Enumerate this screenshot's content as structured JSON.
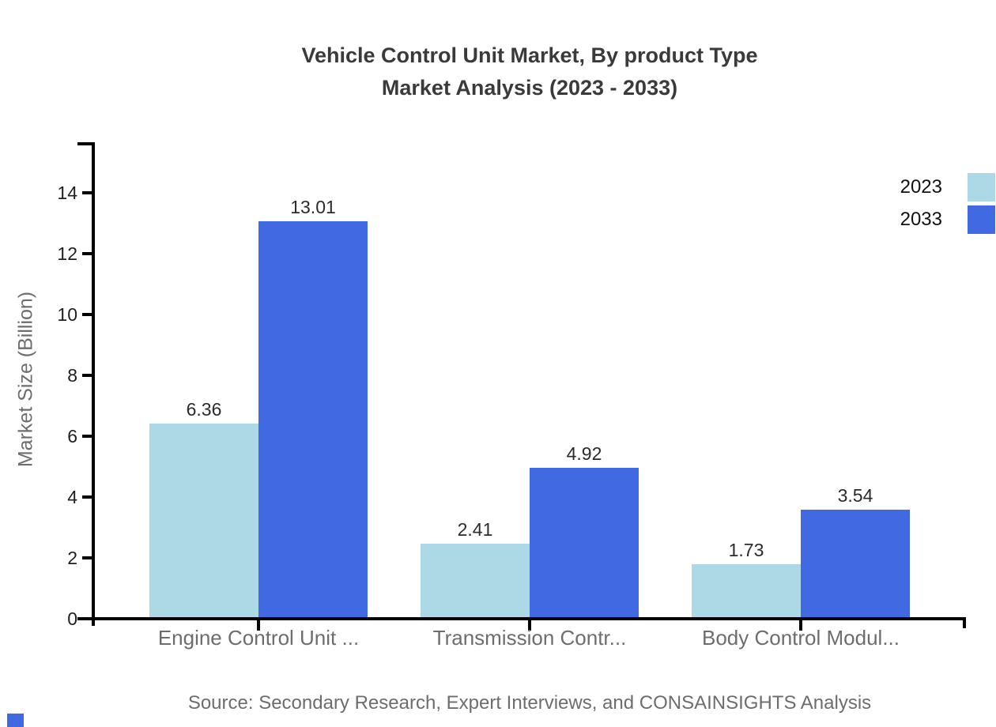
{
  "title": {
    "line1": "Vehicle Control Unit Market, By product Type",
    "line2": "Market Analysis (2023 - 2033)"
  },
  "y_axis": {
    "label": "Market Size (Billion)"
  },
  "legend": {
    "items": [
      {
        "label": "2023",
        "color": "#ADD8E6"
      },
      {
        "label": "2033",
        "color": "#4169E1"
      }
    ]
  },
  "source": "Source: Secondary Research, Expert Interviews, and CONSAINSIGHTS Analysis",
  "accent_color": "#4169E1",
  "chart_data": {
    "type": "bar",
    "title": "Vehicle Control Unit Market, By product Type — Market Analysis (2023 - 2033)",
    "categories": [
      "Engine Control Unit ...",
      "Transmission Contr...",
      "Body Control Modul..."
    ],
    "series": [
      {
        "name": "2023",
        "color": "#ADD8E6",
        "values": [
          6.36,
          2.41,
          1.73
        ]
      },
      {
        "name": "2033",
        "color": "#4169E1",
        "values": [
          13.01,
          4.92,
          3.54
        ]
      }
    ],
    "value_labels": [
      "6.36",
      "13.01",
      "2.41",
      "4.92",
      "1.73",
      "3.54"
    ],
    "xlabel": "",
    "ylabel": "Market Size (Billion)",
    "ylim": [
      0,
      15.6
    ],
    "yticks": [
      0,
      2,
      4,
      6,
      8,
      10,
      12,
      14
    ],
    "grid": false,
    "legend_position": "top-right",
    "legend_entries": [
      "2023",
      "2033"
    ]
  }
}
